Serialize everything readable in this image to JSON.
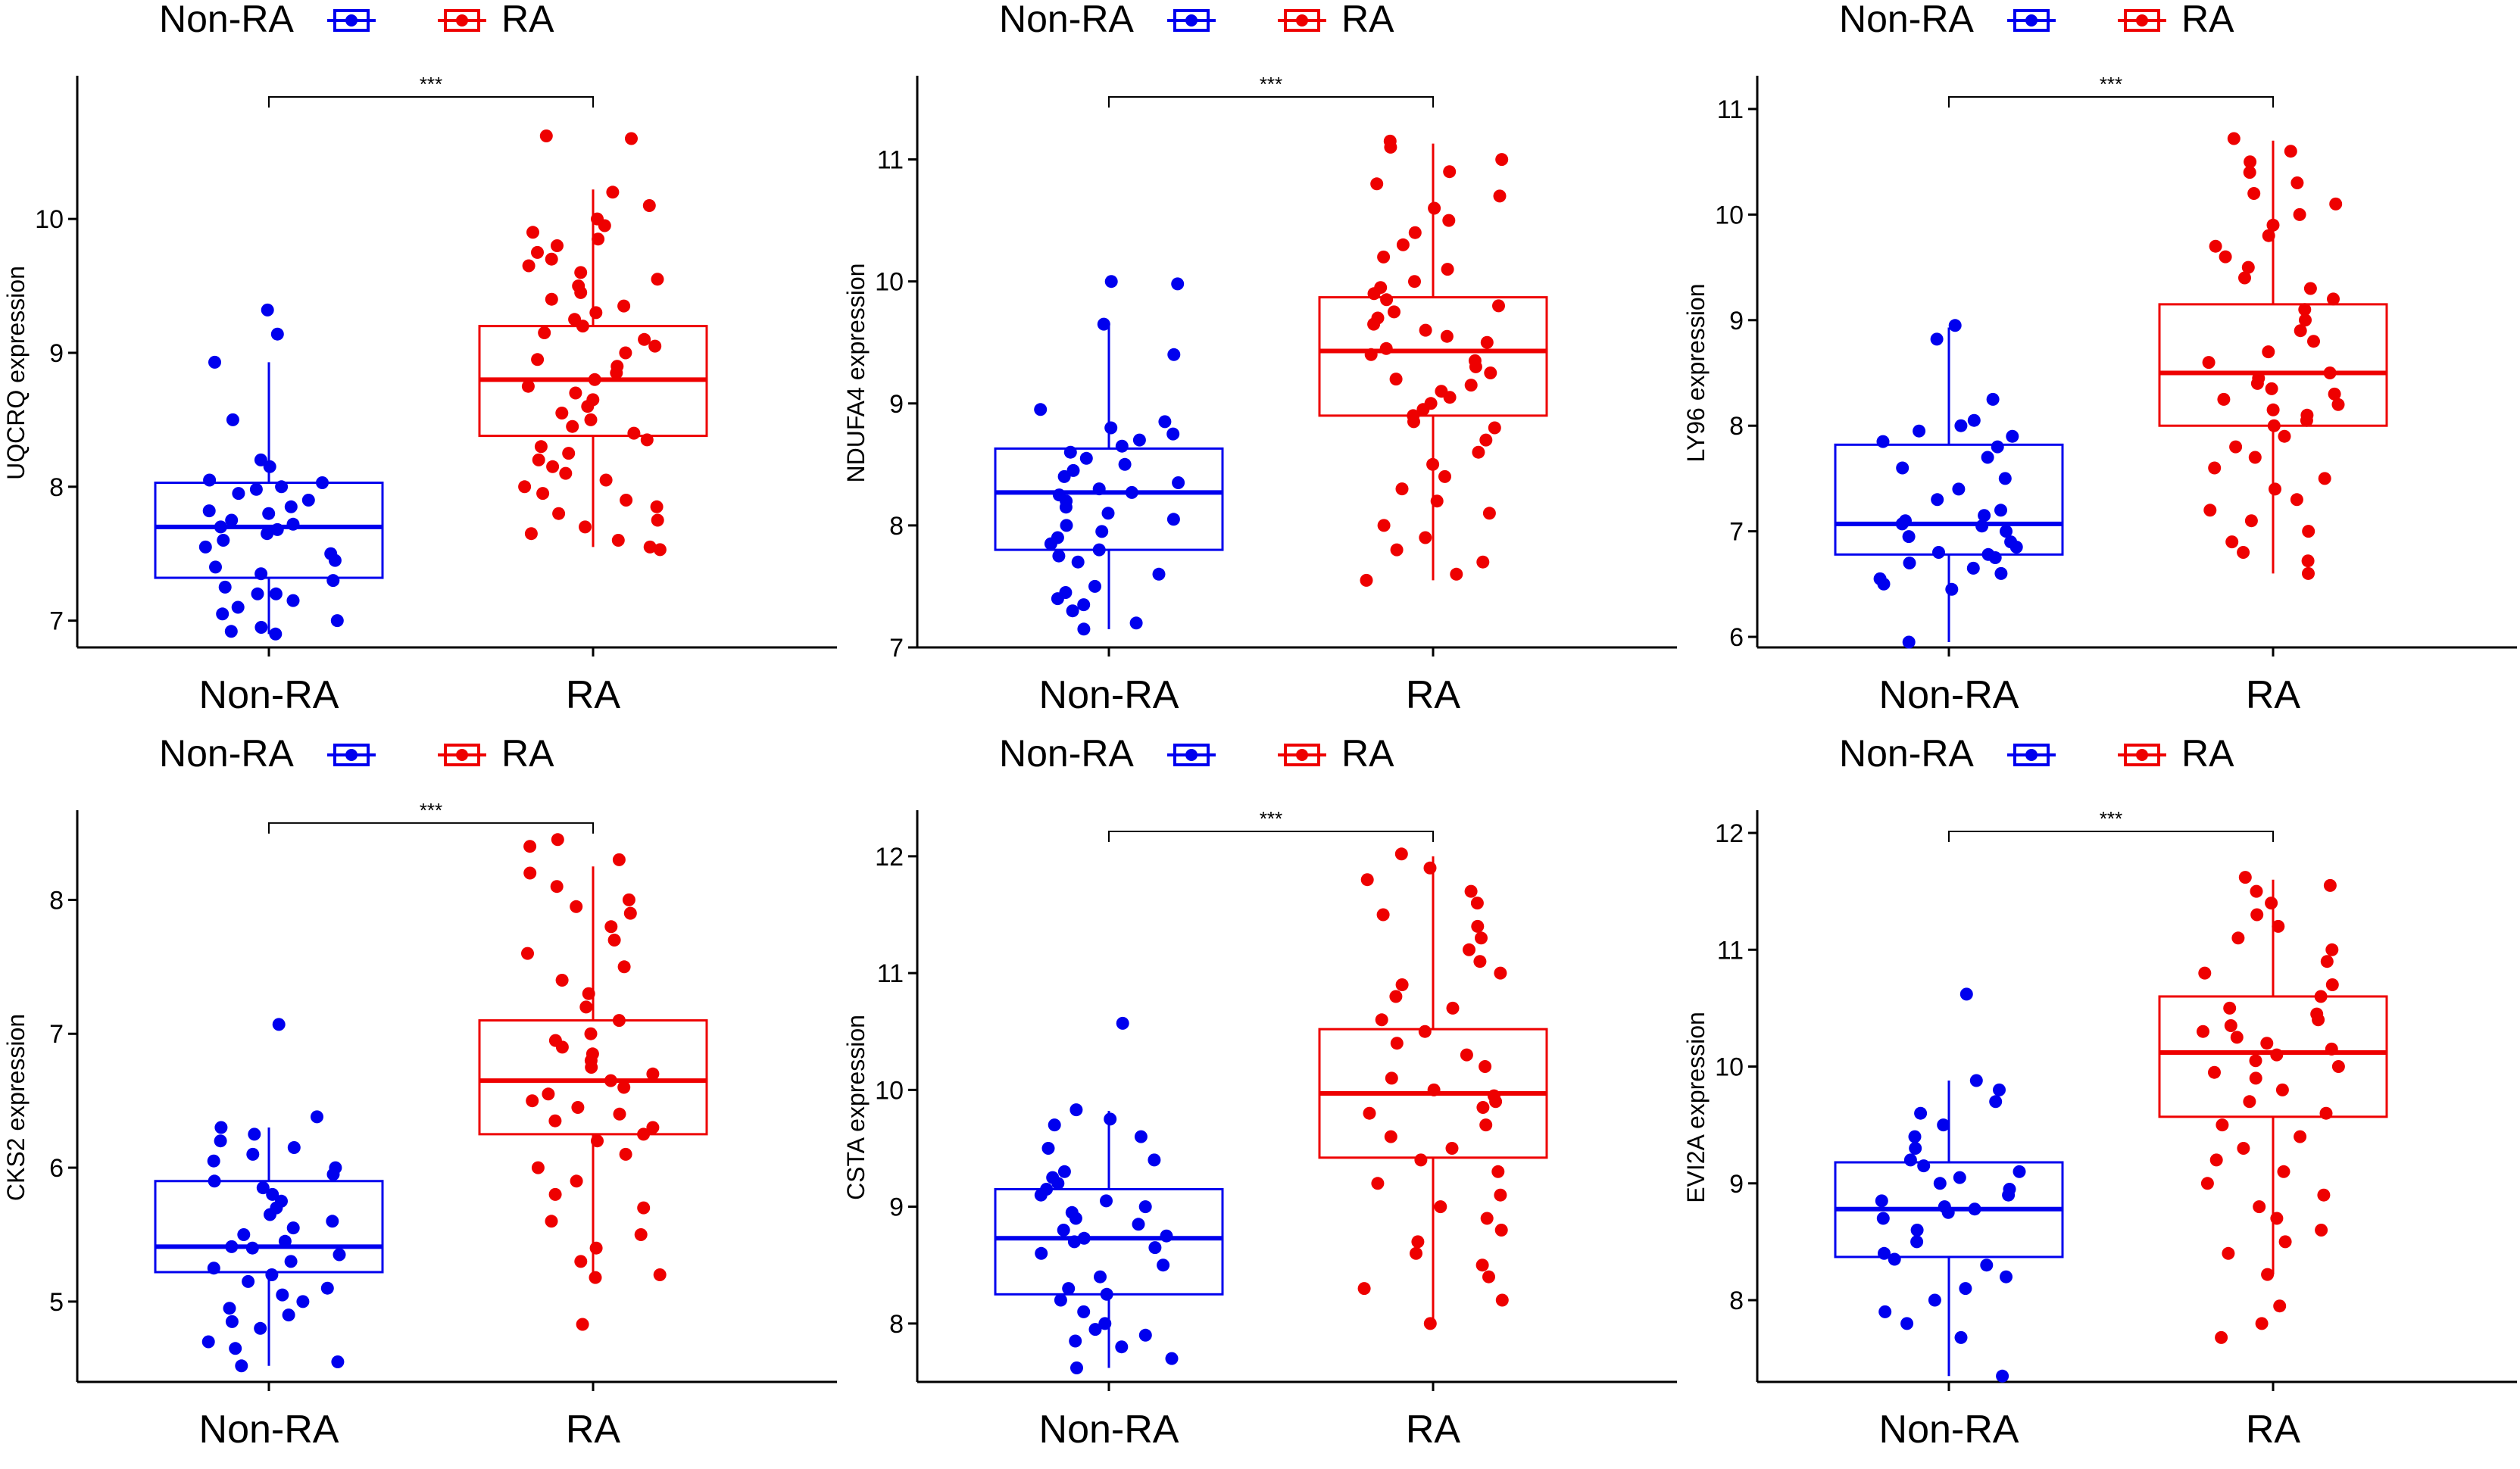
{
  "legend": {
    "non_ra": "Non-RA",
    "ra": "RA"
  },
  "colors": {
    "non_ra": "#0000EE",
    "ra": "#EE0000",
    "axis": "#000000"
  },
  "chart_data": [
    {
      "type": "boxplot",
      "title": "",
      "ylabel": "UQCRQ expression",
      "xlabel": "",
      "categories": [
        "Non-RA",
        "RA"
      ],
      "ylim": [
        6.8,
        10.9
      ],
      "yticks": [
        7,
        8,
        9,
        10
      ],
      "significance": "***",
      "series": [
        {
          "name": "Non-RA",
          "box": {
            "lower_whisker": 6.9,
            "q1": 7.32,
            "median": 7.7,
            "q3": 8.03,
            "upper_whisker": 8.93
          },
          "points": [
            9.32,
            9.14,
            8.93,
            8.5,
            8.2,
            8.15,
            8.05,
            8.03,
            8.0,
            7.98,
            7.95,
            7.9,
            7.85,
            7.82,
            7.8,
            7.75,
            7.72,
            7.7,
            7.68,
            7.65,
            7.6,
            7.55,
            7.5,
            7.45,
            7.4,
            7.35,
            7.3,
            7.25,
            7.2,
            7.2,
            7.15,
            7.1,
            7.05,
            7.0,
            6.95,
            6.92,
            6.9
          ]
        },
        {
          "name": "RA",
          "box": {
            "lower_whisker": 7.55,
            "q1": 8.38,
            "median": 8.8,
            "q3": 9.2,
            "upper_whisker": 10.22
          },
          "points": [
            10.62,
            10.6,
            10.2,
            10.1,
            10.0,
            9.95,
            9.9,
            9.85,
            9.8,
            9.75,
            9.7,
            9.65,
            9.6,
            9.55,
            9.5,
            9.45,
            9.4,
            9.35,
            9.3,
            9.25,
            9.2,
            9.15,
            9.1,
            9.05,
            9.0,
            8.95,
            8.9,
            8.85,
            8.8,
            8.75,
            8.7,
            8.65,
            8.6,
            8.55,
            8.5,
            8.45,
            8.4,
            8.35,
            8.3,
            8.25,
            8.2,
            8.15,
            8.1,
            8.05,
            8.0,
            7.95,
            7.9,
            7.85,
            7.8,
            7.75,
            7.7,
            7.65,
            7.6,
            7.55,
            7.53
          ]
        }
      ]
    },
    {
      "type": "boxplot",
      "title": "",
      "ylabel": "NDUFA4 expression",
      "xlabel": "",
      "categories": [
        "Non-RA",
        "RA"
      ],
      "ylim": [
        7.0,
        11.5
      ],
      "yticks": [
        7,
        8,
        9,
        10,
        11
      ],
      "significance": "***",
      "series": [
        {
          "name": "Non-RA",
          "box": {
            "lower_whisker": 7.15,
            "q1": 7.8,
            "median": 8.27,
            "q3": 8.63,
            "upper_whisker": 9.65
          },
          "points": [
            10.0,
            9.98,
            9.65,
            9.4,
            8.95,
            8.85,
            8.8,
            8.75,
            8.7,
            8.65,
            8.6,
            8.55,
            8.5,
            8.45,
            8.4,
            8.35,
            8.3,
            8.27,
            8.25,
            8.2,
            8.15,
            8.1,
            8.05,
            8.0,
            7.95,
            7.9,
            7.85,
            7.8,
            7.75,
            7.7,
            7.6,
            7.5,
            7.45,
            7.4,
            7.35,
            7.3,
            7.2,
            7.15
          ]
        },
        {
          "name": "RA",
          "box": {
            "lower_whisker": 7.55,
            "q1": 8.9,
            "median": 9.43,
            "q3": 9.87,
            "upper_whisker": 11.13
          },
          "points": [
            11.15,
            11.1,
            11.0,
            10.9,
            10.8,
            10.7,
            10.6,
            10.5,
            10.4,
            10.3,
            10.2,
            10.1,
            10.0,
            9.95,
            9.9,
            9.85,
            9.8,
            9.75,
            9.7,
            9.65,
            9.6,
            9.55,
            9.5,
            9.45,
            9.4,
            9.35,
            9.3,
            9.25,
            9.2,
            9.15,
            9.1,
            9.05,
            9.0,
            8.95,
            8.9,
            8.85,
            8.8,
            8.7,
            8.6,
            8.5,
            8.4,
            8.3,
            8.2,
            8.1,
            8.0,
            7.9,
            7.8,
            7.7,
            7.6,
            7.55
          ]
        }
      ]
    },
    {
      "type": "boxplot",
      "title": "",
      "ylabel": "LY96 expression",
      "xlabel": "",
      "categories": [
        "Non-RA",
        "RA"
      ],
      "ylim": [
        5.9,
        11.1
      ],
      "yticks": [
        6,
        7,
        8,
        9,
        10,
        11
      ],
      "significance": "***",
      "series": [
        {
          "name": "Non-RA",
          "box": {
            "lower_whisker": 5.95,
            "q1": 6.78,
            "median": 7.07,
            "q3": 7.82,
            "upper_whisker": 8.93
          },
          "points": [
            8.95,
            8.82,
            8.25,
            8.05,
            8.0,
            7.95,
            7.9,
            7.85,
            7.8,
            7.7,
            7.6,
            7.5,
            7.4,
            7.3,
            7.2,
            7.15,
            7.1,
            7.07,
            7.05,
            7.0,
            6.95,
            6.9,
            6.85,
            6.8,
            6.78,
            6.75,
            6.7,
            6.65,
            6.6,
            6.55,
            6.5,
            6.45,
            5.95
          ]
        },
        {
          "name": "RA",
          "box": {
            "lower_whisker": 6.6,
            "q1": 8.0,
            "median": 8.5,
            "q3": 9.15,
            "upper_whisker": 10.7
          },
          "points": [
            10.72,
            10.6,
            10.5,
            10.4,
            10.3,
            10.2,
            10.1,
            10.0,
            9.9,
            9.8,
            9.7,
            9.6,
            9.5,
            9.4,
            9.3,
            9.2,
            9.1,
            9.0,
            8.9,
            8.8,
            8.7,
            8.6,
            8.5,
            8.45,
            8.4,
            8.35,
            8.3,
            8.25,
            8.2,
            8.15,
            8.1,
            8.05,
            8.0,
            7.9,
            7.8,
            7.7,
            7.6,
            7.5,
            7.4,
            7.3,
            7.2,
            7.1,
            7.0,
            6.9,
            6.8,
            6.72,
            6.6
          ]
        }
      ]
    },
    {
      "type": "boxplot",
      "title": "",
      "ylabel": "CKS2 expression",
      "xlabel": "",
      "categories": [
        "Non-RA",
        "RA"
      ],
      "ylim": [
        4.4,
        8.5
      ],
      "yticks": [
        5,
        6,
        7,
        8
      ],
      "significance": "***",
      "series": [
        {
          "name": "Non-RA",
          "box": {
            "lower_whisker": 4.52,
            "q1": 5.22,
            "median": 5.41,
            "q3": 5.9,
            "upper_whisker": 6.3
          },
          "points": [
            7.07,
            6.38,
            6.3,
            6.25,
            6.2,
            6.15,
            6.1,
            6.05,
            6.0,
            5.95,
            5.9,
            5.85,
            5.8,
            5.75,
            5.7,
            5.65,
            5.6,
            5.55,
            5.5,
            5.45,
            5.41,
            5.4,
            5.35,
            5.3,
            5.25,
            5.2,
            5.15,
            5.1,
            5.05,
            5.0,
            4.95,
            4.9,
            4.85,
            4.8,
            4.7,
            4.65,
            4.55,
            4.52
          ]
        },
        {
          "name": "RA",
          "box": {
            "lower_whisker": 5.15,
            "q1": 6.25,
            "median": 6.65,
            "q3": 7.1,
            "upper_whisker": 8.25
          },
          "points": [
            8.45,
            8.4,
            8.3,
            8.2,
            8.1,
            8.0,
            7.95,
            7.9,
            7.8,
            7.7,
            7.6,
            7.5,
            7.4,
            7.3,
            7.2,
            7.1,
            7.0,
            6.95,
            6.9,
            6.85,
            6.8,
            6.75,
            6.7,
            6.65,
            6.6,
            6.55,
            6.5,
            6.45,
            6.4,
            6.35,
            6.3,
            6.25,
            6.2,
            6.1,
            6.0,
            5.9,
            5.8,
            5.7,
            5.6,
            5.5,
            5.4,
            5.3,
            5.2,
            5.18,
            4.83
          ]
        }
      ]
    },
    {
      "type": "boxplot",
      "title": "",
      "ylabel": "CSTA expression",
      "xlabel": "",
      "categories": [
        "Non-RA",
        "RA"
      ],
      "ylim": [
        7.5,
        12.2
      ],
      "yticks": [
        8,
        9,
        10,
        11,
        12
      ],
      "significance": "***",
      "series": [
        {
          "name": "Non-RA",
          "box": {
            "lower_whisker": 7.62,
            "q1": 8.25,
            "median": 8.73,
            "q3": 9.15,
            "upper_whisker": 9.82
          },
          "points": [
            10.57,
            9.83,
            9.75,
            9.7,
            9.6,
            9.5,
            9.4,
            9.3,
            9.25,
            9.2,
            9.15,
            9.1,
            9.05,
            9.0,
            8.95,
            8.9,
            8.85,
            8.8,
            8.75,
            8.73,
            8.7,
            8.65,
            8.6,
            8.5,
            8.4,
            8.3,
            8.25,
            8.2,
            8.1,
            8.0,
            7.95,
            7.9,
            7.85,
            7.8,
            7.7,
            7.62
          ]
        },
        {
          "name": "RA",
          "box": {
            "lower_whisker": 8.0,
            "q1": 9.42,
            "median": 9.97,
            "q3": 10.52,
            "upper_whisker": 12.0
          },
          "points": [
            12.02,
            11.9,
            11.8,
            11.7,
            11.6,
            11.5,
            11.4,
            11.3,
            11.2,
            11.1,
            11.0,
            10.9,
            10.8,
            10.7,
            10.6,
            10.5,
            10.4,
            10.3,
            10.2,
            10.1,
            10.0,
            9.95,
            9.9,
            9.85,
            9.8,
            9.7,
            9.6,
            9.5,
            9.4,
            9.3,
            9.2,
            9.1,
            9.0,
            8.9,
            8.8,
            8.7,
            8.6,
            8.5,
            8.4,
            8.3,
            8.2,
            8.0
          ]
        }
      ]
    },
    {
      "type": "boxplot",
      "title": "",
      "ylabel": "EVI2A expression",
      "xlabel": "",
      "categories": [
        "Non-RA",
        "RA"
      ],
      "ylim": [
        7.3,
        12.0
      ],
      "yticks": [
        8,
        9,
        10,
        11,
        12
      ],
      "significance": "***",
      "series": [
        {
          "name": "Non-RA",
          "box": {
            "lower_whisker": 7.35,
            "q1": 8.37,
            "median": 8.78,
            "q3": 9.18,
            "upper_whisker": 9.88
          },
          "points": [
            10.62,
            9.88,
            9.8,
            9.7,
            9.6,
            9.5,
            9.4,
            9.3,
            9.2,
            9.15,
            9.1,
            9.05,
            9.0,
            8.95,
            8.9,
            8.85,
            8.8,
            8.78,
            8.75,
            8.7,
            8.6,
            8.5,
            8.4,
            8.35,
            8.3,
            8.2,
            8.1,
            8.0,
            7.9,
            7.8,
            7.68,
            7.35
          ]
        },
        {
          "name": "RA",
          "box": {
            "lower_whisker": 8.22,
            "q1": 9.57,
            "median": 10.12,
            "q3": 10.6,
            "upper_whisker": 11.6
          },
          "points": [
            11.62,
            11.55,
            11.5,
            11.4,
            11.3,
            11.2,
            11.1,
            11.0,
            10.9,
            10.8,
            10.7,
            10.6,
            10.5,
            10.45,
            10.4,
            10.35,
            10.3,
            10.25,
            10.2,
            10.15,
            10.1,
            10.05,
            10.0,
            9.95,
            9.9,
            9.8,
            9.7,
            9.6,
            9.5,
            9.4,
            9.3,
            9.2,
            9.1,
            9.0,
            8.9,
            8.8,
            8.7,
            8.6,
            8.5,
            8.4,
            8.22,
            7.95,
            7.8,
            7.68
          ]
        }
      ]
    }
  ]
}
